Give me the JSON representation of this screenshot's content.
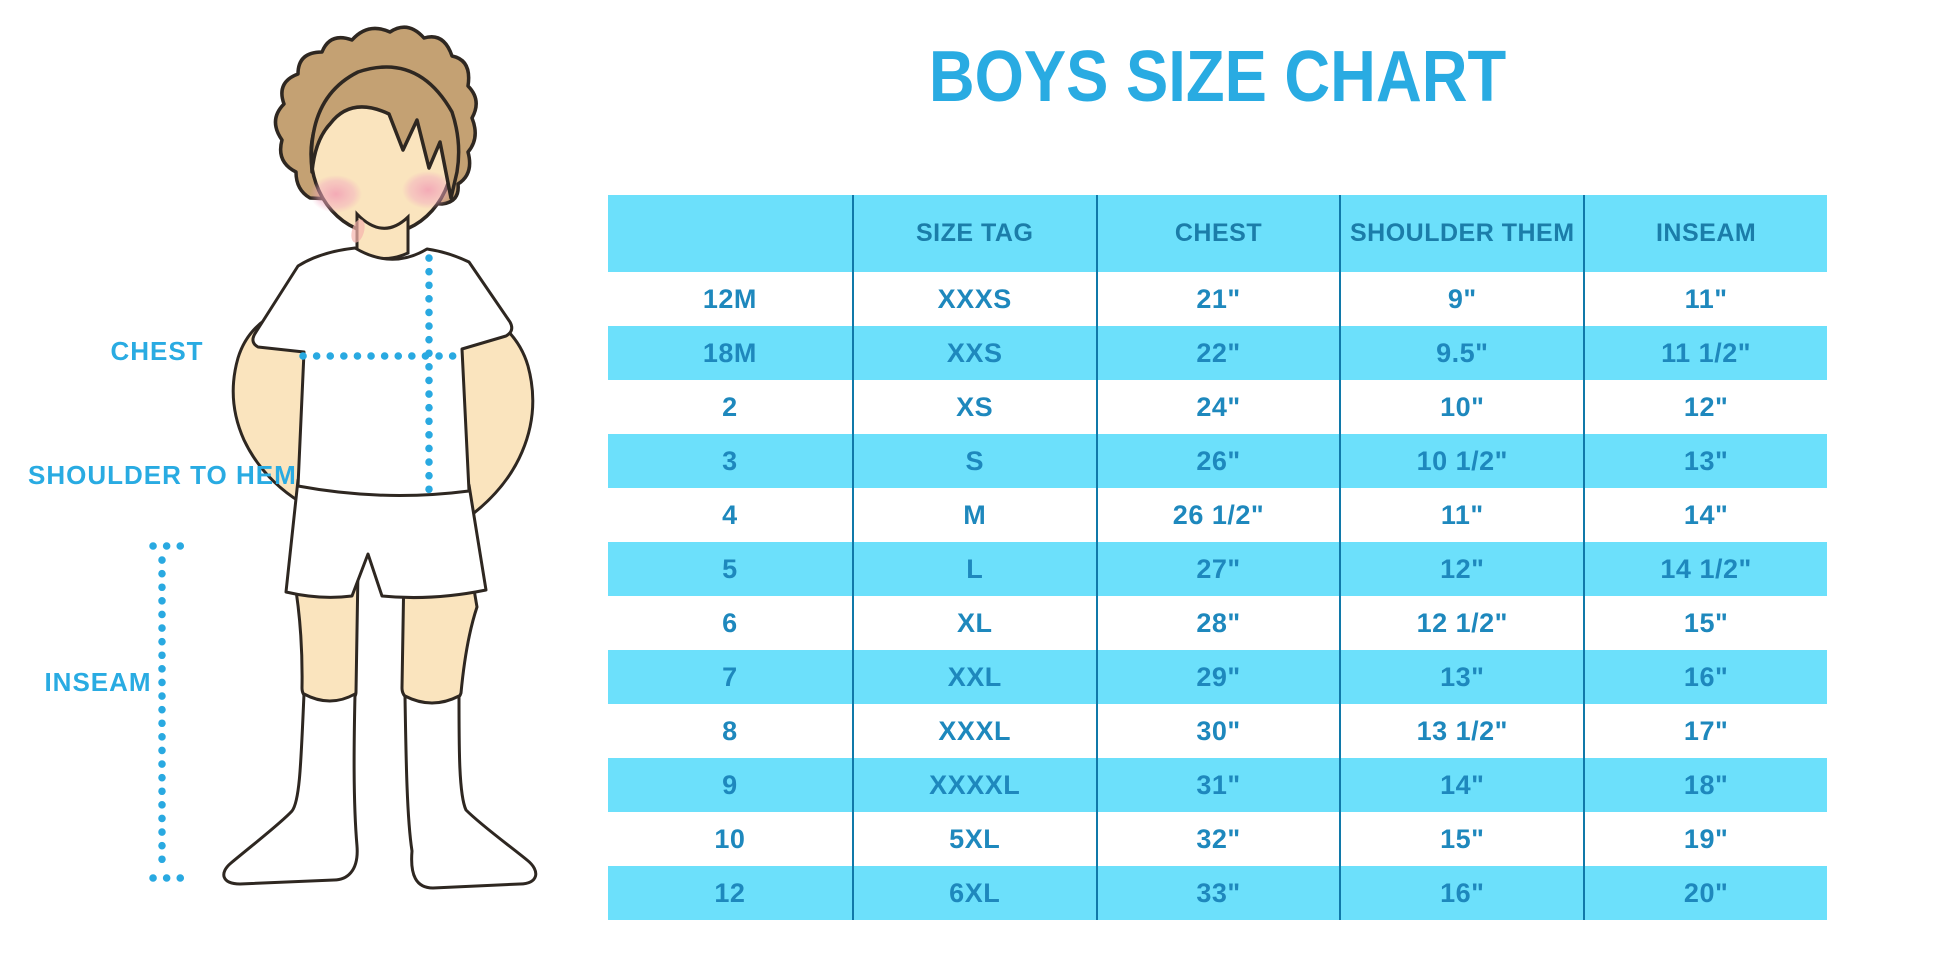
{
  "title": {
    "text": "BOYS SIZE CHART"
  },
  "figure": {
    "labels": {
      "chest": "CHEST",
      "shoulder_to_hem": "SHOULDER TO HEM",
      "inseam": "INSEAM"
    }
  },
  "table": {
    "columns": [
      "",
      "SIZE TAG",
      "CHEST",
      "SHOULDER THEM",
      "INSEAM"
    ],
    "rows": [
      [
        "12M",
        "XXXS",
        "21\"",
        "9\"",
        "11\""
      ],
      [
        "18M",
        "XXS",
        "22\"",
        "9.5\"",
        "11 1/2\""
      ],
      [
        "2",
        "XS",
        "24\"",
        "10\"",
        "12\""
      ],
      [
        "3",
        "S",
        "26\"",
        "10 1/2\"",
        "13\""
      ],
      [
        "4",
        "M",
        "26 1/2\"",
        "11\"",
        "14\""
      ],
      [
        "5",
        "L",
        "27\"",
        "12\"",
        "14 1/2\""
      ],
      [
        "6",
        "XL",
        "28\"",
        "12 1/2\"",
        "15\""
      ],
      [
        "7",
        "XXL",
        "29\"",
        "13\"",
        "16\""
      ],
      [
        "8",
        "XXXL",
        "30\"",
        "13 1/2\"",
        "17\""
      ],
      [
        "9",
        "XXXXL",
        "31\"",
        "14\"",
        "18\""
      ],
      [
        "10",
        "5XL",
        "32\"",
        "15\"",
        "19\""
      ],
      [
        "12",
        "6XL",
        "33\"",
        "16\"",
        "20\""
      ]
    ]
  },
  "colors": {
    "accent": "#29ABE2",
    "table_stripe": "#6CE0FB",
    "table_line": "#1079A9",
    "header_text": "#1B7DA9",
    "cell_text": "#1E88BD",
    "skin": "#FAE4BE",
    "hair": "#C4A173",
    "outline": "#2E2721",
    "blush": "#F2A9C0",
    "dots": "#29A9E1",
    "garment": "#FFFFFF"
  },
  "chart_data": {
    "type": "table",
    "title": "BOYS SIZE CHART",
    "columns": [
      "",
      "SIZE TAG",
      "CHEST",
      "SHOULDER THEM",
      "INSEAM"
    ],
    "rows": [
      [
        "12M",
        "XXXS",
        "21\"",
        "9\"",
        "11\""
      ],
      [
        "18M",
        "XXS",
        "22\"",
        "9.5\"",
        "11 1/2\""
      ],
      [
        "2",
        "XS",
        "24\"",
        "10\"",
        "12\""
      ],
      [
        "3",
        "S",
        "26\"",
        "10 1/2\"",
        "13\""
      ],
      [
        "4",
        "M",
        "26 1/2\"",
        "11\"",
        "14\""
      ],
      [
        "5",
        "L",
        "27\"",
        "12\"",
        "14 1/2\""
      ],
      [
        "6",
        "XL",
        "28\"",
        "12 1/2\"",
        "15\""
      ],
      [
        "7",
        "XXL",
        "29\"",
        "13\"",
        "16\""
      ],
      [
        "8",
        "XXXL",
        "30\"",
        "13 1/2\"",
        "17\""
      ],
      [
        "9",
        "XXXXL",
        "31\"",
        "14\"",
        "18\""
      ],
      [
        "10",
        "5XL",
        "32\"",
        "15\"",
        "19\""
      ],
      [
        "12",
        "6XL",
        "33\"",
        "16\"",
        "20\""
      ]
    ],
    "annotations": [
      "CHEST",
      "SHOULDER TO HEM",
      "INSEAM"
    ],
    "notes": "Boys garment size conversion chart; striped cyan rows; measurement diagram of boy at left"
  }
}
